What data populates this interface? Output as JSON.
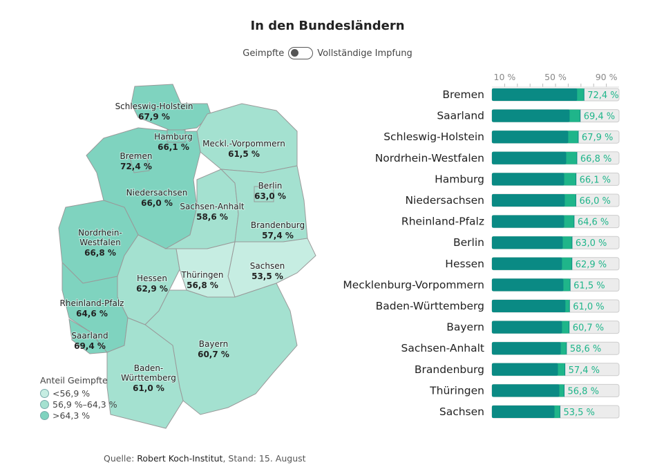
{
  "title": "In den Bundesländern",
  "toggle": {
    "left_label": "Geimpfte",
    "right_label": "Vollständige Impfung",
    "state": "Geimpfte"
  },
  "colors": {
    "full": "#0a8a84",
    "first": "#1fb58a",
    "track": "#ececec",
    "legend": [
      "#c6ede2",
      "#a4e1d0",
      "#7fd3bf"
    ]
  },
  "legend": {
    "title": "Anteil Geimpfte",
    "items": [
      "<56,9 %",
      "56,9 %–64,3 %",
      ">64,3 %"
    ]
  },
  "source": {
    "prefix": "Quelle: ",
    "name": "Robert Koch-Institut",
    "suffix": ", Stand: 15. August"
  },
  "chart_data": {
    "type": "bar",
    "unit": "%",
    "xlim": [
      0,
      100
    ],
    "ticks": [
      {
        "v": 10,
        "label": "10 %"
      },
      {
        "v": 50,
        "label": "50 %"
      },
      {
        "v": 90,
        "label": "90 %"
      }
    ],
    "categories": [
      "Bremen",
      "Saarland",
      "Schleswig-Holstein",
      "Nordrhein-Westfalen",
      "Hamburg",
      "Niedersachsen",
      "Rheinland-Pfalz",
      "Berlin",
      "Hessen",
      "Mecklenburg-Vorpommern",
      "Baden-Württemberg",
      "Bayern",
      "Sachsen-Anhalt",
      "Brandenburg",
      "Thüringen",
      "Sachsen"
    ],
    "series": [
      {
        "name": "Geimpfte",
        "values": [
          72.4,
          69.4,
          67.9,
          66.8,
          66.1,
          66.0,
          64.6,
          63.0,
          62.9,
          61.5,
          61.0,
          60.7,
          58.6,
          57.4,
          56.8,
          53.5
        ],
        "labels": [
          "72,4 %",
          "69,4 %",
          "67,9 %",
          "66,8 %",
          "66,1 %",
          "66,0 %",
          "64,6 %",
          "63,0 %",
          "62,9 %",
          "61,5 %",
          "61,0 %",
          "60,7 %",
          "58,6 %",
          "57,4 %",
          "56,8 %",
          "53,5 %"
        ]
      },
      {
        "name": "Vollständige Impfung",
        "values": [
          67.0,
          61.1,
          60.0,
          58.4,
          56.8,
          57.3,
          56.8,
          55.7,
          55.1,
          56.2,
          57.8,
          55.1,
          54.1,
          51.9,
          53.0,
          49.2
        ]
      }
    ]
  },
  "map": {
    "states": [
      {
        "name": "Schleswig-Holstein",
        "label": [
          "Schleswig-Holstein"
        ],
        "value": "67,9 %"
      },
      {
        "name": "Hamburg",
        "label": [
          "Hamburg"
        ],
        "value": "66,1 %"
      },
      {
        "name": "Mecklenburg-Vorpommern",
        "label": [
          "Meckl.-Vorpommern"
        ],
        "value": "61,5 %"
      },
      {
        "name": "Bremen",
        "label": [
          "Bremen"
        ],
        "value": "72,4 %"
      },
      {
        "name": "Niedersachsen",
        "label": [
          "Niedersachsen"
        ],
        "value": "66,0 %"
      },
      {
        "name": "Berlin",
        "label": [
          "Berlin"
        ],
        "value": "63,0 %"
      },
      {
        "name": "Sachsen-Anhalt",
        "label": [
          "Sachsen-Anhalt"
        ],
        "value": "58,6 %"
      },
      {
        "name": "Brandenburg",
        "label": [
          "Brandenburg"
        ],
        "value": "57,4 %"
      },
      {
        "name": "Nordrhein-Westfalen",
        "label": [
          "Nordrhein-",
          "Westfalen"
        ],
        "value": "66,8 %"
      },
      {
        "name": "Sachsen",
        "label": [
          "Sachsen"
        ],
        "value": "53,5 %"
      },
      {
        "name": "Hessen",
        "label": [
          "Hessen"
        ],
        "value": "62,9 %"
      },
      {
        "name": "Thüringen",
        "label": [
          "Thüringen"
        ],
        "value": "56,8 %"
      },
      {
        "name": "Rheinland-Pfalz",
        "label": [
          "Rheinland-Pfalz"
        ],
        "value": "64,6 %"
      },
      {
        "name": "Saarland",
        "label": [
          "Saarland"
        ],
        "value": "69,4 %"
      },
      {
        "name": "Bayern",
        "label": [
          "Bayern"
        ],
        "value": "60,7 %"
      },
      {
        "name": "Baden-Württemberg",
        "label": [
          "Baden-",
          "Württemberg"
        ],
        "value": "61,0 %"
      }
    ]
  }
}
